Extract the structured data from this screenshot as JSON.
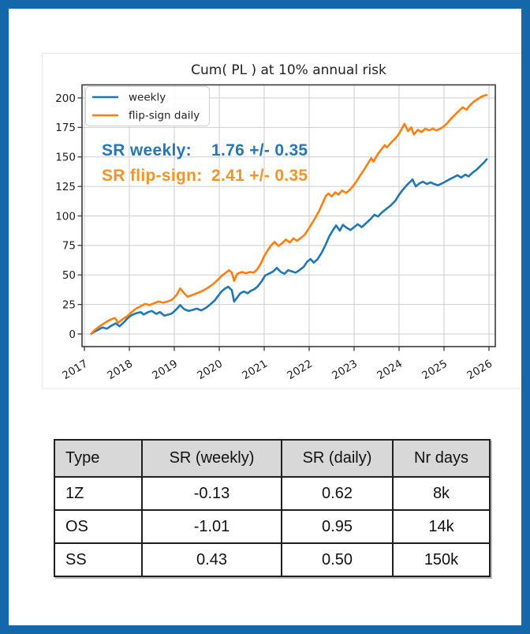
{
  "page": {
    "border_color": "#1467a8",
    "background": "#ffffff"
  },
  "chart_data": {
    "type": "line",
    "title": "Cum( PL ) at 10% annual risk",
    "xlabel": "",
    "ylabel": "",
    "x_ticks": [
      2017,
      2018,
      2019,
      2020,
      2021,
      2022,
      2023,
      2024,
      2025,
      2026
    ],
    "y_ticks": [
      0,
      25,
      50,
      75,
      100,
      125,
      150,
      175,
      200
    ],
    "xlim": [
      2016.95,
      2026.14
    ],
    "ylim": [
      -11,
      211
    ],
    "grid": true,
    "legend": {
      "position": "upper left",
      "entries": [
        {
          "label": "weekly",
          "color": "#1f77b4"
        },
        {
          "label": "flip-sign daily",
          "color": "#ff7f0e"
        }
      ]
    },
    "annotations": [
      {
        "label": "SR weekly:",
        "value": "1.76 +/- 0.35",
        "color": "#2577b5"
      },
      {
        "label": "SR flip-sign:",
        "value": "2.41 +/- 0.35",
        "color": "#f3932a"
      }
    ],
    "series": [
      {
        "name": "weekly",
        "color": "#1f77b4",
        "points": [
          [
            2017.15,
            0
          ],
          [
            2017.2,
            1.5
          ],
          [
            2017.3,
            3.5
          ],
          [
            2017.4,
            5.5
          ],
          [
            2017.5,
            4.5
          ],
          [
            2017.6,
            7
          ],
          [
            2017.7,
            9
          ],
          [
            2017.78,
            6.5
          ],
          [
            2017.88,
            10
          ],
          [
            2017.95,
            13
          ],
          [
            2018.05,
            16
          ],
          [
            2018.15,
            17.5
          ],
          [
            2018.25,
            18.5
          ],
          [
            2018.32,
            16.5
          ],
          [
            2018.42,
            18.5
          ],
          [
            2018.5,
            19.5
          ],
          [
            2018.6,
            17
          ],
          [
            2018.68,
            18.5
          ],
          [
            2018.78,
            15.5
          ],
          [
            2018.88,
            16.5
          ],
          [
            2018.95,
            17.5
          ],
          [
            2019.05,
            21
          ],
          [
            2019.13,
            24.5
          ],
          [
            2019.22,
            21
          ],
          [
            2019.32,
            19.5
          ],
          [
            2019.42,
            20.5
          ],
          [
            2019.5,
            21.5
          ],
          [
            2019.6,
            20
          ],
          [
            2019.7,
            22
          ],
          [
            2019.8,
            25
          ],
          [
            2019.9,
            28.5
          ],
          [
            2019.97,
            32
          ],
          [
            2020.05,
            36
          ],
          [
            2020.13,
            38.5
          ],
          [
            2020.2,
            40
          ],
          [
            2020.28,
            37
          ],
          [
            2020.33,
            27.5
          ],
          [
            2020.4,
            31
          ],
          [
            2020.47,
            34.5
          ],
          [
            2020.55,
            36
          ],
          [
            2020.63,
            34.5
          ],
          [
            2020.7,
            36.5
          ],
          [
            2020.78,
            38
          ],
          [
            2020.85,
            40
          ],
          [
            2020.95,
            45
          ],
          [
            2021.02,
            49.5
          ],
          [
            2021.1,
            51
          ],
          [
            2021.2,
            53
          ],
          [
            2021.28,
            56
          ],
          [
            2021.37,
            52.5
          ],
          [
            2021.45,
            51
          ],
          [
            2021.53,
            54
          ],
          [
            2021.62,
            53
          ],
          [
            2021.7,
            52
          ],
          [
            2021.78,
            54
          ],
          [
            2021.88,
            57
          ],
          [
            2021.95,
            61
          ],
          [
            2022.03,
            63.5
          ],
          [
            2022.1,
            60.5
          ],
          [
            2022.18,
            63
          ],
          [
            2022.28,
            69
          ],
          [
            2022.37,
            76
          ],
          [
            2022.45,
            83
          ],
          [
            2022.53,
            88
          ],
          [
            2022.6,
            92
          ],
          [
            2022.68,
            87.5
          ],
          [
            2022.75,
            92.5
          ],
          [
            2022.83,
            90
          ],
          [
            2022.92,
            88
          ],
          [
            2023.0,
            90.5
          ],
          [
            2023.08,
            93
          ],
          [
            2023.17,
            90.5
          ],
          [
            2023.27,
            94
          ],
          [
            2023.37,
            97.5
          ],
          [
            2023.45,
            101
          ],
          [
            2023.53,
            99.5
          ],
          [
            2023.62,
            103
          ],
          [
            2023.72,
            106
          ],
          [
            2023.82,
            109
          ],
          [
            2023.92,
            113
          ],
          [
            2024.0,
            118
          ],
          [
            2024.08,
            122
          ],
          [
            2024.17,
            126
          ],
          [
            2024.25,
            129
          ],
          [
            2024.3,
            131
          ],
          [
            2024.37,
            125
          ],
          [
            2024.45,
            127.5
          ],
          [
            2024.53,
            129
          ],
          [
            2024.62,
            127
          ],
          [
            2024.7,
            128.5
          ],
          [
            2024.78,
            127
          ],
          [
            2024.87,
            126
          ],
          [
            2024.95,
            127.5
          ],
          [
            2025.03,
            129
          ],
          [
            2025.12,
            131
          ],
          [
            2025.2,
            132.5
          ],
          [
            2025.3,
            134.5
          ],
          [
            2025.38,
            132.5
          ],
          [
            2025.47,
            135
          ],
          [
            2025.55,
            133.5
          ],
          [
            2025.63,
            136.5
          ],
          [
            2025.72,
            139
          ],
          [
            2025.8,
            142
          ],
          [
            2025.88,
            145
          ],
          [
            2025.95,
            148
          ]
        ]
      },
      {
        "name": "flip-sign daily",
        "color": "#ff7f0e",
        "points": [
          [
            2017.15,
            0
          ],
          [
            2017.22,
            3
          ],
          [
            2017.3,
            5.5
          ],
          [
            2017.4,
            8
          ],
          [
            2017.5,
            10.5
          ],
          [
            2017.6,
            12.5
          ],
          [
            2017.68,
            13.5
          ],
          [
            2017.75,
            9.5
          ],
          [
            2017.85,
            12.5
          ],
          [
            2017.95,
            15
          ],
          [
            2018.05,
            18.5
          ],
          [
            2018.15,
            21.5
          ],
          [
            2018.25,
            23.5
          ],
          [
            2018.35,
            25.5
          ],
          [
            2018.45,
            24.5
          ],
          [
            2018.55,
            26
          ],
          [
            2018.65,
            27.5
          ],
          [
            2018.75,
            26.5
          ],
          [
            2018.85,
            27.5
          ],
          [
            2018.95,
            29
          ],
          [
            2019.05,
            33
          ],
          [
            2019.13,
            38.5
          ],
          [
            2019.22,
            34.5
          ],
          [
            2019.3,
            31.5
          ],
          [
            2019.4,
            33
          ],
          [
            2019.5,
            34.5
          ],
          [
            2019.6,
            36
          ],
          [
            2019.7,
            38
          ],
          [
            2019.8,
            40.5
          ],
          [
            2019.9,
            43.5
          ],
          [
            2019.97,
            46
          ],
          [
            2020.05,
            49
          ],
          [
            2020.13,
            51.5
          ],
          [
            2020.22,
            54
          ],
          [
            2020.28,
            52
          ],
          [
            2020.33,
            45
          ],
          [
            2020.4,
            51
          ],
          [
            2020.5,
            52.5
          ],
          [
            2020.6,
            51.5
          ],
          [
            2020.68,
            52.5
          ],
          [
            2020.77,
            52
          ],
          [
            2020.85,
            55
          ],
          [
            2020.93,
            60
          ],
          [
            2021.0,
            66
          ],
          [
            2021.08,
            71
          ],
          [
            2021.15,
            75
          ],
          [
            2021.23,
            78
          ],
          [
            2021.32,
            74.5
          ],
          [
            2021.4,
            77
          ],
          [
            2021.48,
            80
          ],
          [
            2021.57,
            77.5
          ],
          [
            2021.65,
            81
          ],
          [
            2021.73,
            79
          ],
          [
            2021.82,
            81.5
          ],
          [
            2021.9,
            84
          ],
          [
            2021.97,
            88
          ],
          [
            2022.05,
            93
          ],
          [
            2022.13,
            98
          ],
          [
            2022.22,
            104
          ],
          [
            2022.3,
            111
          ],
          [
            2022.37,
            117
          ],
          [
            2022.43,
            119
          ],
          [
            2022.5,
            116.5
          ],
          [
            2022.58,
            120
          ],
          [
            2022.65,
            118
          ],
          [
            2022.73,
            121.5
          ],
          [
            2022.82,
            119.5
          ],
          [
            2022.9,
            122
          ],
          [
            2022.97,
            125
          ],
          [
            2023.05,
            129
          ],
          [
            2023.13,
            134
          ],
          [
            2023.22,
            139
          ],
          [
            2023.3,
            144
          ],
          [
            2023.38,
            149
          ],
          [
            2023.43,
            146
          ],
          [
            2023.52,
            152
          ],
          [
            2023.6,
            156
          ],
          [
            2023.68,
            160
          ],
          [
            2023.73,
            158
          ],
          [
            2023.82,
            162
          ],
          [
            2023.9,
            165
          ],
          [
            2023.97,
            168
          ],
          [
            2024.05,
            173
          ],
          [
            2024.12,
            178
          ],
          [
            2024.2,
            172
          ],
          [
            2024.27,
            175
          ],
          [
            2024.33,
            169
          ],
          [
            2024.42,
            173
          ],
          [
            2024.5,
            171
          ],
          [
            2024.58,
            174
          ],
          [
            2024.67,
            172.5
          ],
          [
            2024.75,
            174
          ],
          [
            2024.83,
            172.5
          ],
          [
            2024.92,
            174
          ],
          [
            2025.0,
            176
          ],
          [
            2025.08,
            179
          ],
          [
            2025.17,
            183
          ],
          [
            2025.25,
            186
          ],
          [
            2025.33,
            189
          ],
          [
            2025.42,
            192
          ],
          [
            2025.5,
            190
          ],
          [
            2025.58,
            194
          ],
          [
            2025.67,
            197
          ],
          [
            2025.75,
            199
          ],
          [
            2025.83,
            201
          ],
          [
            2025.9,
            202
          ],
          [
            2025.95,
            202.5
          ]
        ]
      }
    ]
  },
  "table": {
    "header_bg": "#d8d8d8",
    "headers": [
      "Type",
      "SR (weekly)",
      "SR (daily)",
      "Nr days"
    ],
    "rows": [
      [
        "1Z",
        "-0.13",
        "0.62",
        "8k"
      ],
      [
        "OS",
        "-1.01",
        "0.95",
        "14k"
      ],
      [
        "SS",
        "0.43",
        "0.50",
        "150k"
      ]
    ]
  }
}
